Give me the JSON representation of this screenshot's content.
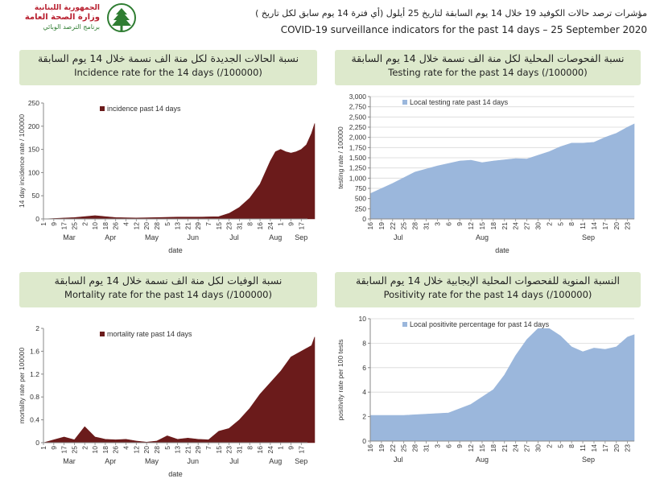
{
  "header": {
    "logo": {
      "line1": "الجمهورية اللبنانية",
      "line2": "وزارة الصحة العامة",
      "line3": "برنامج الترصد الوبائي",
      "brand_color": "#b81e2e",
      "secondary_color": "#2f7d32"
    },
    "title_ar": "مؤشرات ترصد حالات الكوفيد 19 خلال 14 يوم السابقة لتاريخ 25 أيلول (أي فترة 14 يوم سابق لكل تاريخ )",
    "title_en": "COVID-19 surveillance indicators for the past 14 days – 25 September 2020"
  },
  "panels": {
    "incidence": {
      "title_ar": "نسبة الحالات الجديدة لكل منة الف نسمة خلال 14 يوم السابقة",
      "title_en": "Incidence rate for the 14 days  (/100000)"
    },
    "testing": {
      "title_ar": "نسبة الفحوصات المحلية لكل منة الف نسمة خلال 14 يوم السابقة",
      "title_en": "Testing rate for the past 14 days (/100000)"
    },
    "mortality": {
      "title_ar": "نسبة الوفيات لكل منة الف نسمة خلال 14 يوم السابقة",
      "title_en": "Mortality rate for the past 14 days (/100000)"
    },
    "positivity": {
      "title_ar": "النسبة المنوية للفحصوات المحلية الإيجابية خلال 14 يوم السابقة",
      "title_en": "Positivity rate for the past 14 days (/100000)"
    }
  },
  "chart_data": [
    {
      "id": "incidence",
      "type": "area",
      "title": "Incidence rate for the 14 days  (/100000)",
      "xlabel": "date",
      "ylabel": "14 day incidence rate / 100000",
      "ylim": [
        0,
        250
      ],
      "yticks": [
        0,
        50,
        100,
        150,
        200,
        250
      ],
      "ytick_labels": [
        "0",
        "50",
        "100",
        "150",
        "200",
        "250"
      ],
      "grid": false,
      "legend": "top-left",
      "color": "#6b1b1b",
      "series": [
        {
          "name": "incidence past 14 days"
        }
      ],
      "xtick_labels": [
        "1",
        "9",
        "17",
        "25",
        "2",
        "10",
        "18",
        "26",
        "4",
        "12",
        "20",
        "28",
        "5",
        "13",
        "21",
        "29",
        "7",
        "15",
        "23",
        "31",
        "8",
        "16",
        "24",
        "1",
        "9",
        "17"
      ],
      "month_labels": [
        "Mar",
        "Apr",
        "May",
        "Jun",
        "Jul",
        "Aug",
        "Sep"
      ],
      "month_positions": [
        2.5,
        6.5,
        10.5,
        14.5,
        18.5,
        22.5,
        25
      ],
      "x": [
        0,
        3,
        5,
        7,
        9,
        11,
        13,
        15,
        17,
        18,
        19,
        20,
        21,
        21.5,
        22,
        22.5,
        23,
        23.5,
        24,
        24.5,
        25,
        25.5,
        26,
        26.3
      ],
      "values": [
        0,
        3,
        7,
        3,
        2,
        3,
        4,
        4,
        5,
        12,
        25,
        45,
        75,
        100,
        125,
        145,
        150,
        145,
        142,
        145,
        150,
        160,
        185,
        206
      ]
    },
    {
      "id": "testing",
      "type": "area",
      "title": "Testing rate for the past 14 days (/100000)",
      "xlabel": "date",
      "ylabel": "testing rate / 100000",
      "ylim": [
        0,
        3000
      ],
      "yticks": [
        0,
        250,
        500,
        750,
        1000,
        1250,
        1500,
        1750,
        2000,
        2250,
        2500,
        2750,
        3000
      ],
      "ytick_labels": [
        "0",
        "250",
        "500",
        "750",
        "1,000",
        "1,250",
        "1,500",
        "1,750",
        "2,000",
        "2,250",
        "2,500",
        "2,750",
        "3,000"
      ],
      "grid": true,
      "legend": "top-left",
      "color": "#9bb7dc",
      "series": [
        {
          "name": "Local testing rate past 14 days"
        }
      ],
      "xtick_labels": [
        "16",
        "19",
        "22",
        "25",
        "28",
        "31",
        "3",
        "6",
        "9",
        "12",
        "15",
        "18",
        "21",
        "24",
        "27",
        "30",
        "2",
        "5",
        "8",
        "11",
        "14",
        "17",
        "20",
        "23"
      ],
      "month_labels": [
        "Jul",
        "Aug",
        "Sep"
      ],
      "month_positions": [
        2.5,
        10,
        19.5
      ],
      "x": [
        0,
        2,
        4,
        6,
        8,
        9,
        10,
        11,
        12,
        13,
        14,
        15,
        16,
        17,
        18,
        19,
        20,
        21,
        22,
        23,
        23.6
      ],
      "values": [
        620,
        870,
        1150,
        1300,
        1420,
        1440,
        1380,
        1420,
        1450,
        1480,
        1470,
        1560,
        1650,
        1770,
        1860,
        1860,
        1880,
        2000,
        2100,
        2250,
        2330
      ]
    },
    {
      "id": "mortality",
      "type": "area",
      "title": "Mortality rate for the past 14 days (/100000)",
      "xlabel": "date",
      "ylabel": "mortality rate per 100000",
      "ylim": [
        0,
        2
      ],
      "yticks": [
        0,
        0.4,
        0.8,
        1.2,
        1.6,
        2
      ],
      "ytick_labels": [
        "0",
        "0.4",
        "0.8",
        "1.2",
        "1.6",
        "2"
      ],
      "grid": false,
      "legend": "top-left",
      "color": "#6b1b1b",
      "series": [
        {
          "name": "mortality rate past 14 days"
        }
      ],
      "xtick_labels": [
        "1",
        "9",
        "17",
        "25",
        "2",
        "10",
        "18",
        "26",
        "4",
        "12",
        "20",
        "28",
        "5",
        "13",
        "21",
        "29",
        "7",
        "15",
        "23",
        "31",
        "8",
        "16",
        "24",
        "1",
        "9",
        "17"
      ],
      "month_labels": [
        "Mar",
        "Apr",
        "May",
        "Jun",
        "Jul",
        "Aug",
        "Sep"
      ],
      "month_positions": [
        2.5,
        6.5,
        10.5,
        14.5,
        18.5,
        22.5,
        25
      ],
      "x": [
        0,
        1,
        2,
        3,
        4,
        5,
        6,
        7,
        8,
        9,
        10,
        11,
        12,
        13,
        14,
        15,
        16,
        17,
        18,
        19,
        20,
        21,
        22,
        23,
        24,
        25,
        26,
        26.3
      ],
      "values": [
        0,
        0.05,
        0.1,
        0.05,
        0.28,
        0.1,
        0.06,
        0.05,
        0.06,
        0.03,
        0.01,
        0.03,
        0.12,
        0.06,
        0.08,
        0.06,
        0.05,
        0.2,
        0.25,
        0.4,
        0.6,
        0.85,
        1.05,
        1.25,
        1.5,
        1.6,
        1.7,
        1.85
      ]
    },
    {
      "id": "positivity",
      "type": "area",
      "title": "Positivity rate for the past 14 days (/100000)",
      "xlabel": "",
      "ylabel": "positivity rate per 100 tests",
      "ylim": [
        0,
        10
      ],
      "yticks": [
        0,
        2,
        4,
        6,
        8,
        10
      ],
      "ytick_labels": [
        "0",
        "2",
        "4",
        "6",
        "8",
        "10"
      ],
      "grid": true,
      "legend": "top-left",
      "color": "#9bb7dc",
      "series": [
        {
          "name": "Local positivite percentage for past 14 days"
        }
      ],
      "xtick_labels": [
        "16",
        "19",
        "22",
        "25",
        "28",
        "31",
        "3",
        "6",
        "9",
        "12",
        "15",
        "18",
        "21",
        "24",
        "27",
        "30",
        "2",
        "5",
        "8",
        "11",
        "14",
        "17",
        "20",
        "23"
      ],
      "month_labels": [
        "Jul",
        "Aug",
        "Sep"
      ],
      "month_positions": [
        2.5,
        10,
        19.5
      ],
      "x": [
        0,
        3,
        5,
        7,
        9,
        11,
        12,
        13,
        14,
        15,
        16,
        17,
        18,
        19,
        20,
        21,
        22,
        23,
        23.6
      ],
      "values": [
        2.1,
        2.1,
        2.2,
        2.3,
        3.0,
        4.2,
        5.4,
        7.0,
        8.3,
        9.2,
        9.2,
        8.6,
        7.7,
        7.3,
        7.6,
        7.5,
        7.7,
        8.5,
        8.7
      ]
    }
  ]
}
